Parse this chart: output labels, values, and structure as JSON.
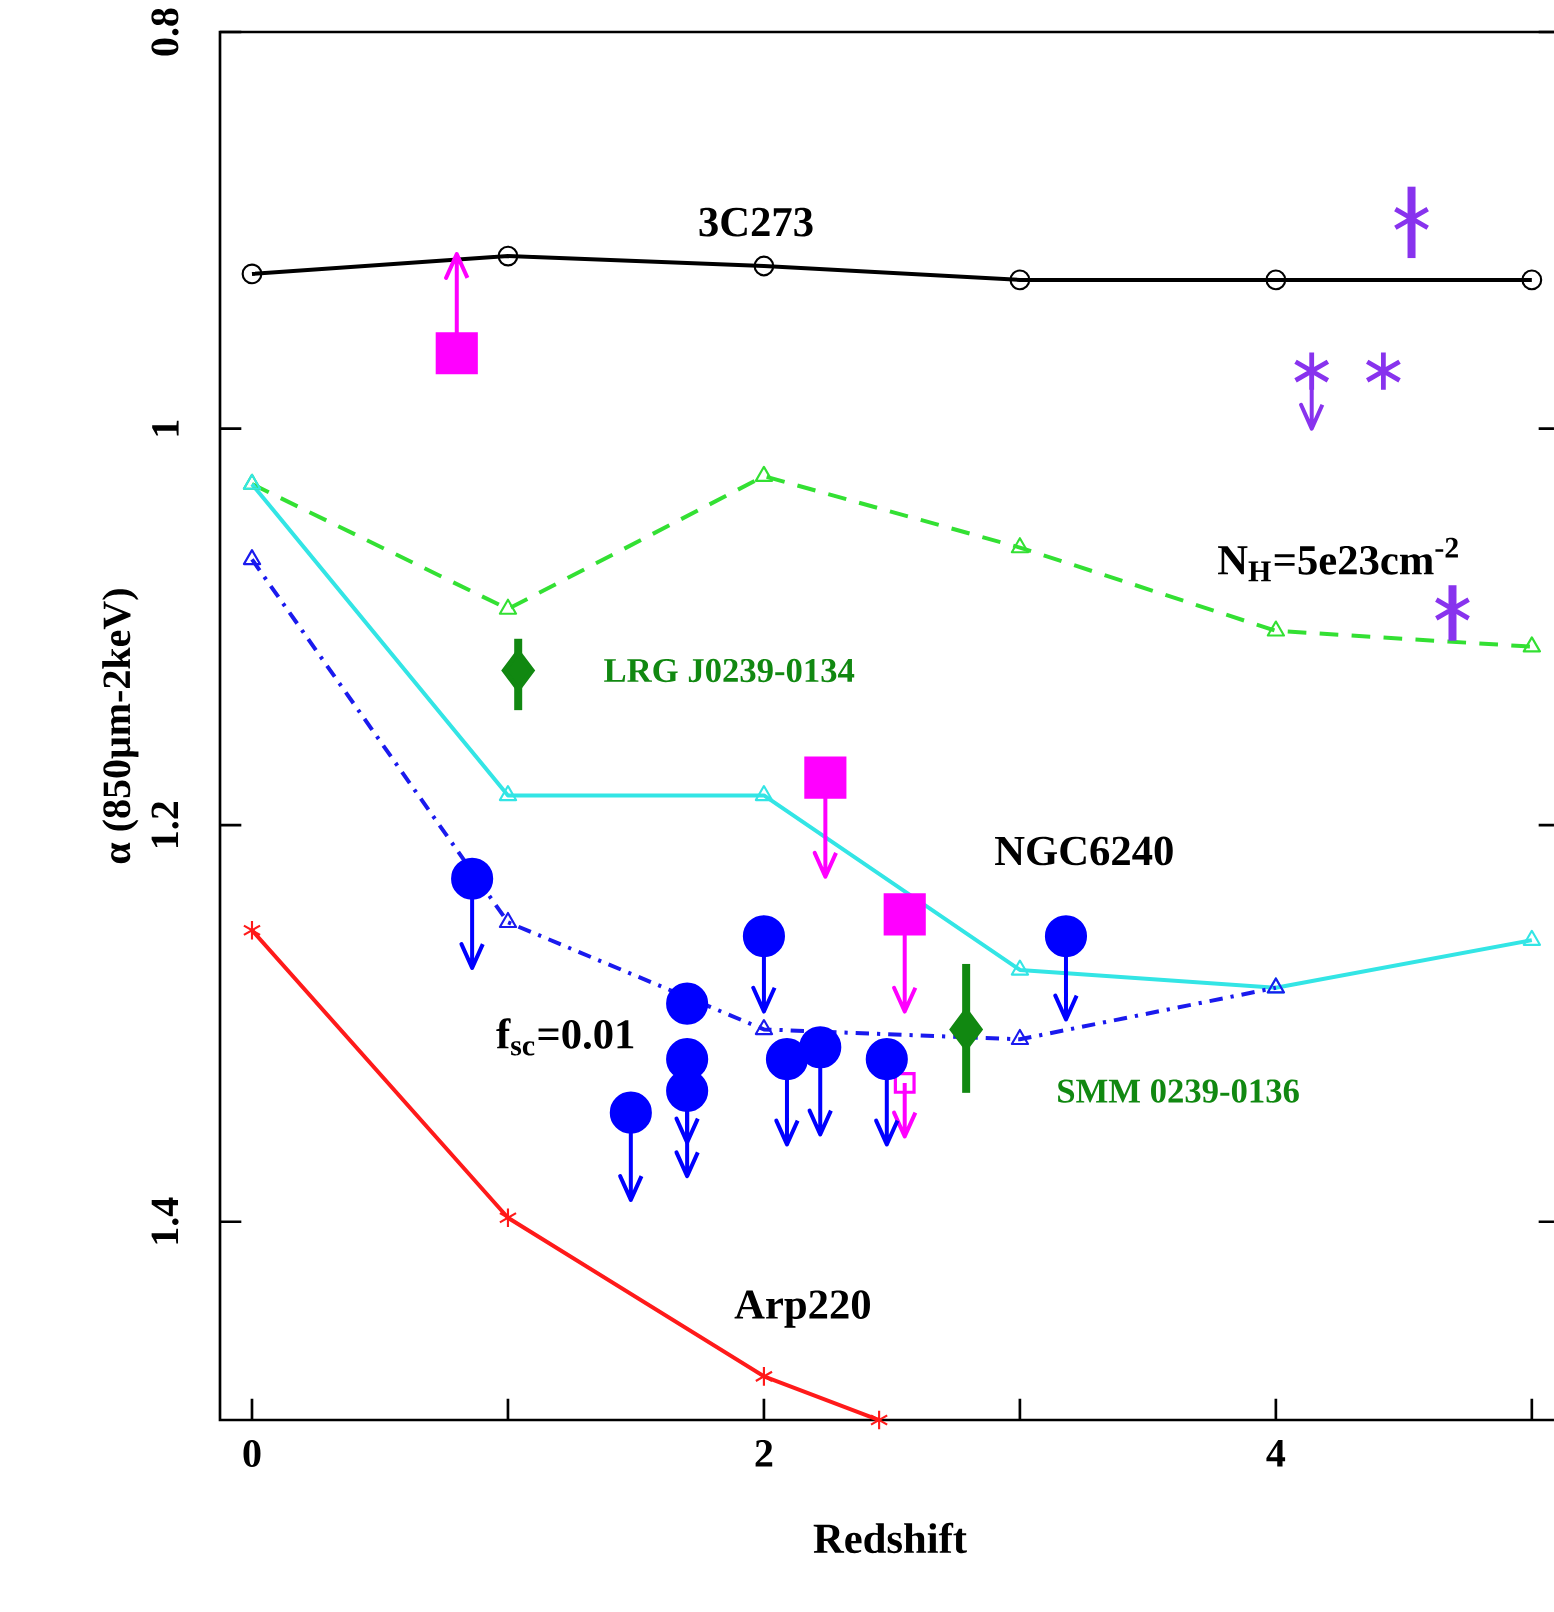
{
  "chart_data": {
    "type": "line",
    "xlabel": "Redshift",
    "ylabel": "α (850μm-2keV)",
    "xlim": [
      -0.125,
      5.11
    ],
    "ylim": [
      1.5,
      0.8
    ],
    "xticks": [
      0,
      {
        "value": 1,
        "label": null
      },
      2,
      {
        "value": 3,
        "label": null
      },
      4,
      {
        "value": 5,
        "label": null
      }
    ],
    "yticks": [
      0.8,
      1,
      1.2,
      1.4
    ],
    "series": [
      {
        "color": "#000000",
        "marker": "circle",
        "line_style": "solid",
        "x": [
          0,
          1,
          2,
          3,
          4,
          5
        ],
        "values": [
          0.922,
          0.913,
          0.918,
          0.925,
          0.925,
          0.925
        ]
      },
      {
        "color": "#33e033",
        "marker": "triangle",
        "line_style": "dashed",
        "x": [
          0,
          1,
          2,
          3,
          4,
          5
        ],
        "values": [
          1.028,
          1.091,
          1.024,
          1.06,
          1.102,
          1.11
        ]
      },
      {
        "color": "#33e5e5",
        "marker": "triangle",
        "line_style": "solid",
        "x": [
          0,
          1,
          2,
          3,
          4,
          5
        ],
        "values": [
          1.028,
          1.185,
          1.185,
          1.273,
          1.282,
          1.258
        ]
      },
      {
        "color": "#1a1aee",
        "marker": "triangle",
        "line_style": "dotted",
        "x": [
          0,
          1,
          2,
          3,
          4
        ],
        "values": [
          1.066,
          1.249,
          1.303,
          1.308,
          1.282
        ]
      },
      {
        "color": "#ff1a1a",
        "marker": "cross",
        "line_style": "solid",
        "x": [
          0,
          1,
          2,
          2.45
        ],
        "values": [
          1.253,
          1.398,
          1.478,
          1.5
        ]
      },
      {
        "type": "scatter",
        "color": "#ff00ff",
        "marker": "square",
        "x": [
          0.8,
          2.24,
          2.55
        ],
        "values": [
          0.962,
          1.176,
          1.245
        ],
        "errors": [
          [
            0.912,
            0.962
          ],
          [
            1.176,
            1.226
          ],
          [
            1.245,
            1.294
          ]
        ]
      },
      {
        "type": "scatter",
        "color": "#ff00ff",
        "marker": "square",
        "x": [
          2.55
        ],
        "values": [
          1.33
        ],
        "errors": [
          [
            1.33,
            1.357
          ]
        ]
      },
      {
        "type": "scatter",
        "color": "#0000ff",
        "marker": "circle",
        "x": [
          0.86,
          2.0,
          3.18,
          1.7,
          1.7,
          1.7,
          1.48,
          2.09,
          2.22,
          2.48
        ],
        "values": [
          1.227,
          1.256,
          1.256,
          1.29,
          1.318,
          1.334,
          1.345,
          1.318,
          1.312,
          1.318
        ],
        "errors": [
          [
            1.227,
            1.272
          ],
          [
            1.256,
            1.294
          ],
          [
            1.256,
            1.298
          ],
          null,
          [
            1.318,
            1.36
          ],
          [
            1.334,
            1.377
          ],
          [
            1.345,
            1.389
          ],
          [
            1.318,
            1.361
          ],
          [
            1.312,
            1.356
          ],
          [
            1.318,
            1.361
          ]
        ]
      },
      {
        "type": "scatter",
        "color": "#118811",
        "marker": "diamond",
        "x": [
          1.04,
          2.79
        ],
        "values": [
          1.122,
          1.303
        ],
        "errors": [
          [
            1.106,
            1.142
          ],
          [
            1.27,
            1.335
          ]
        ]
      },
      {
        "type": "scatter",
        "color": "#8833ee",
        "marker": "cross",
        "x": [
          4.53,
          4.14,
          4.42,
          4.69
        ],
        "values": [
          0.894,
          0.971,
          0.971,
          1.091
        ],
        "errors": [
          [
            0.878,
            0.914
          ],
          [
            0.971,
            1.0
          ],
          null,
          [
            1.079,
            1.107
          ]
        ]
      }
    ],
    "annotations": [
      "3C273",
      "N$_{H}$=5e23cm$^{-2}$",
      "LRG J0239-0134",
      "NGC6240",
      "f$_{sc}$=0.01",
      "SMM 0239-0136",
      "Arp220"
    ]
  }
}
